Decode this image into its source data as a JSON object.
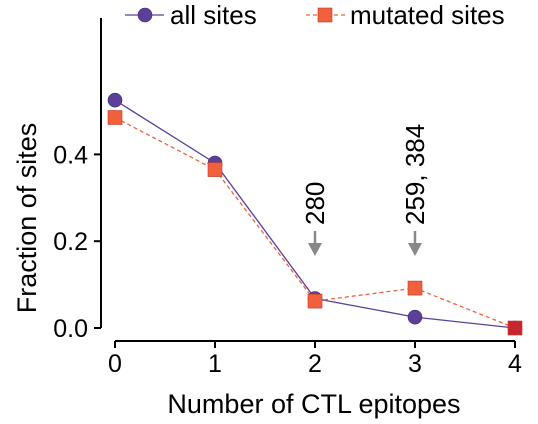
{
  "chart_data": {
    "type": "line",
    "xlabel": "Number of CTL epitopes",
    "ylabel": "Fraction of sites",
    "x": [
      0,
      1,
      2,
      3,
      4
    ],
    "xlim": [
      0,
      4
    ],
    "ylim": [
      0,
      0.5
    ],
    "xticks": [
      "0",
      "1",
      "2",
      "3",
      "4"
    ],
    "yticks": [
      "0.0",
      "0.2",
      "0.4"
    ],
    "ytick_values": [
      0,
      0.2,
      0.4
    ],
    "grid": false,
    "legend_position": "top",
    "series": [
      {
        "name": "all sites",
        "values": [
          0.525,
          0.38,
          0.068,
          0.025,
          0.0
        ],
        "color": "#5b3f99",
        "marker": "circle",
        "line_style": "solid"
      },
      {
        "name": "mutated sites",
        "values": [
          0.485,
          0.365,
          0.062,
          0.092,
          0.0
        ],
        "color": "#f0603c",
        "marker": "square",
        "line_style": "dashed"
      }
    ],
    "annotations": [
      {
        "label": "280",
        "x": 2,
        "arrow": "down"
      },
      {
        "label": "259, 384",
        "x": 3,
        "arrow": "down"
      }
    ],
    "annotation_arrow_color": "#888888",
    "last_marker_overlap_color": "#c8262f"
  }
}
